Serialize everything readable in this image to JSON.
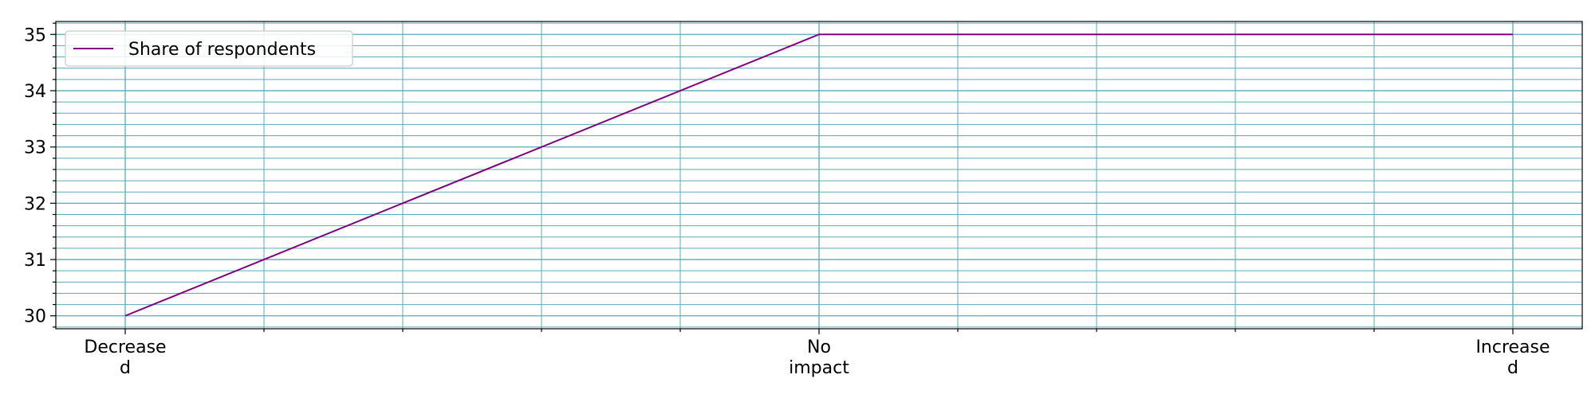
{
  "chart_data": {
    "type": "line",
    "categories": [
      "Decreased",
      "No impact",
      "Increased"
    ],
    "category_labels": [
      [
        "Decrease",
        "d"
      ],
      [
        "No",
        "impact"
      ],
      [
        "Increase",
        "d"
      ]
    ],
    "series": [
      {
        "name": "Share of respondents",
        "values": [
          30,
          35,
          35
        ],
        "color": "#800080"
      }
    ],
    "ylim": [
      29.77,
      35.23
    ],
    "yticks": [
      30,
      31,
      32,
      33,
      34,
      35
    ],
    "y_minor_step": 0.2,
    "x_minor_divisions": 5,
    "grid": true,
    "grid_color": "#5aabb8",
    "legend_position": "top-left"
  }
}
